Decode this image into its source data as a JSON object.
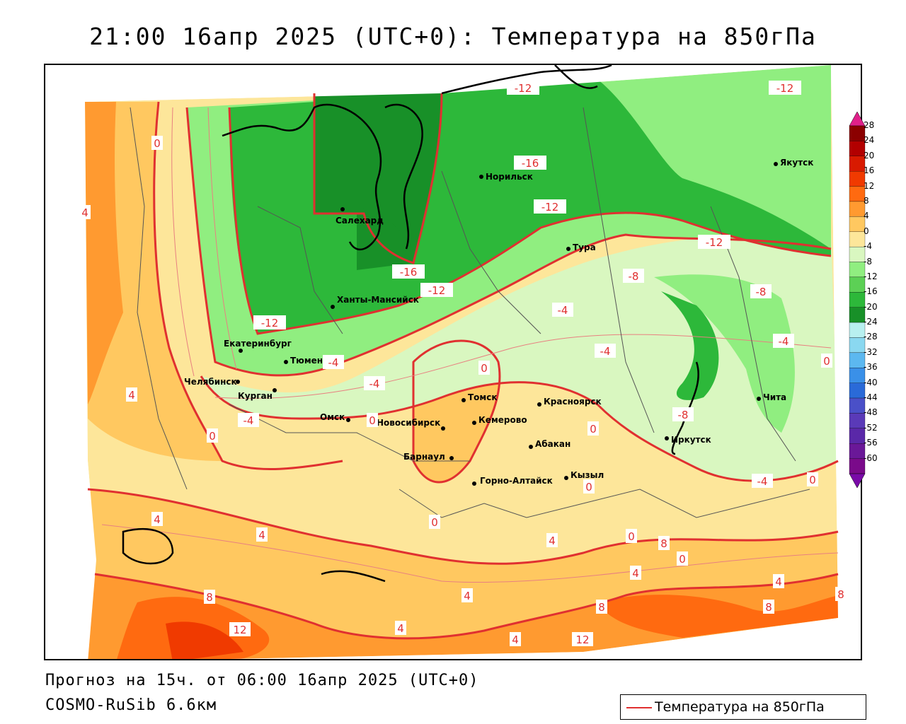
{
  "title": "21:00 16апр 2025 (UTC+0): Температура на 850гПа",
  "forecast_text": "Прогноз на 15ч. от 06:00 16апр 2025 (UTC+0)",
  "model_text": "COSMO-RuSib 6.6км",
  "legend": {
    "label": "Температура на 850гПа",
    "line_color": "#e03030"
  },
  "colorbar": {
    "labels": [
      "28",
      "24",
      "20",
      "16",
      "12",
      "8",
      "4",
      "0",
      "-4",
      "-8",
      "-12",
      "-16",
      "-20",
      "-24",
      "-28",
      "-32",
      "-36",
      "-40",
      "-44",
      "-48",
      "-52",
      "-56",
      "-60"
    ],
    "colors": [
      "#8b0000",
      "#b20000",
      "#d81a00",
      "#f03a00",
      "#ff6a10",
      "#ff9a30",
      "#ffc860",
      "#fde69a",
      "#d9f7c0",
      "#90ee80",
      "#5cd055",
      "#2db83a",
      "#189028",
      "#b8f0f0",
      "#8ad8f0",
      "#5cb8f0",
      "#3a90e8",
      "#2a6ad8",
      "#4a50c8",
      "#5a3ab8",
      "#5a28a8",
      "#6a1898",
      "#7a0a8a"
    ]
  },
  "cities": [
    {
      "name": "Салехард"
    },
    {
      "name": "Норильск"
    },
    {
      "name": "Якутск"
    },
    {
      "name": "Тура"
    },
    {
      "name": "Ханты-Мансийск"
    },
    {
      "name": "Екатеринбург"
    },
    {
      "name": "Тюмень"
    },
    {
      "name": "Челябинск"
    },
    {
      "name": "Курган"
    },
    {
      "name": "Омск"
    },
    {
      "name": "Новосибирск"
    },
    {
      "name": "Томск"
    },
    {
      "name": "Кемерово"
    },
    {
      "name": "Красноярск"
    },
    {
      "name": "Барнаул"
    },
    {
      "name": "Абакан"
    },
    {
      "name": "Горно-Алтайск"
    },
    {
      "name": "Кызыл"
    },
    {
      "name": "Иркутск"
    },
    {
      "name": "Чита"
    }
  ],
  "isotherm_labels": [
    "-12",
    "-12",
    "0",
    "-16",
    "-12",
    "-12",
    "4",
    "-12",
    "-16",
    "-12",
    "-8",
    "-4",
    "-8",
    "-4",
    "-4",
    "0",
    "-4",
    "0",
    "-4",
    "-4",
    "0",
    "-8",
    "0",
    "-4",
    "0",
    "4",
    "4",
    "0",
    "0",
    "0",
    "4",
    "4",
    "0",
    "0",
    "4",
    "4",
    "8",
    "8",
    "4",
    "8",
    "8",
    "12",
    "4",
    "4",
    "12",
    "8"
  ]
}
